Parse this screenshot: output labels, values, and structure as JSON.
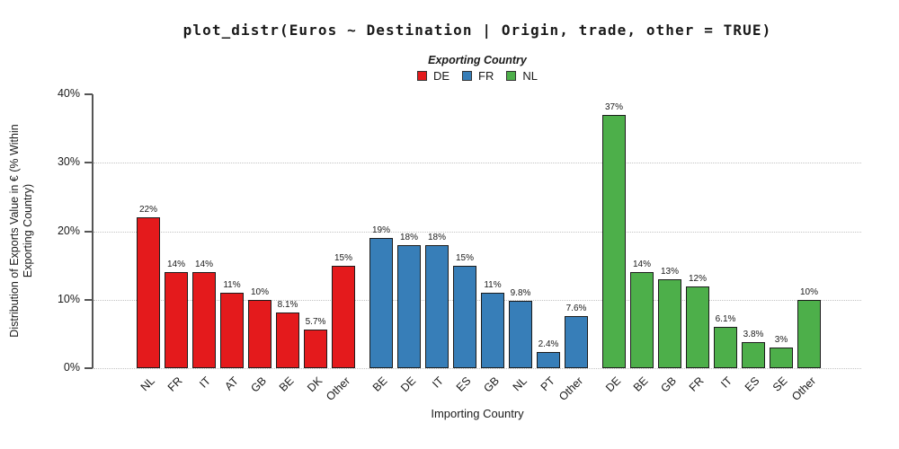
{
  "title": "plot_distr(Euros ~ Destination | Origin, trade, other = TRUE)",
  "legend": {
    "title": "Exporting Country",
    "items": [
      {
        "label": "DE",
        "color": "#e41a1c"
      },
      {
        "label": "FR",
        "color": "#377eb8"
      },
      {
        "label": "NL",
        "color": "#4daf4a"
      }
    ]
  },
  "axes": {
    "x_title": "Importing Country",
    "y_title_line1": "Distribution of Exports Value in € (% Within",
    "y_title_line2": "Exporting Country)",
    "y_ticks": [
      "0%",
      "10%",
      "20%",
      "30%",
      "40%"
    ]
  },
  "chart_data": {
    "type": "bar",
    "title": "plot_distr(Euros ~ Destination | Origin, trade, other = TRUE)",
    "xlabel": "Importing Country",
    "ylabel": "Distribution of Exports Value in € (% Within Exporting Country)",
    "legend_title": "Exporting Country",
    "legend_position": "top",
    "ylim": [
      0,
      40
    ],
    "ytick_values": [
      0,
      10,
      20,
      30,
      40
    ],
    "grid": "horizontal dotted at 0%, 10%, 20%, 30%",
    "bar_outline_color": "#1c1c1c",
    "series": [
      {
        "name": "DE",
        "color": "#e41a1c",
        "categories": [
          "NL",
          "FR",
          "IT",
          "AT",
          "GB",
          "BE",
          "DK",
          "Other"
        ],
        "values": [
          22,
          14,
          14,
          11,
          10,
          8.1,
          5.7,
          15
        ],
        "labels": [
          "22%",
          "14%",
          "14%",
          "11%",
          "10%",
          "8.1%",
          "5.7%",
          "15%"
        ]
      },
      {
        "name": "FR",
        "color": "#377eb8",
        "categories": [
          "BE",
          "DE",
          "IT",
          "ES",
          "GB",
          "NL",
          "PT",
          "Other"
        ],
        "values": [
          19,
          18,
          18,
          15,
          11,
          9.8,
          2.4,
          7.6
        ],
        "labels": [
          "19%",
          "18%",
          "18%",
          "15%",
          "11%",
          "9.8%",
          "2.4%",
          "7.6%"
        ]
      },
      {
        "name": "NL",
        "color": "#4daf4a",
        "categories": [
          "DE",
          "BE",
          "GB",
          "FR",
          "IT",
          "ES",
          "SE",
          "Other"
        ],
        "values": [
          37,
          14,
          13,
          12,
          6.1,
          3.8,
          3,
          10
        ],
        "labels": [
          "37%",
          "14%",
          "13%",
          "12%",
          "6.1%",
          "3.8%",
          "3%",
          "10%"
        ]
      }
    ]
  }
}
